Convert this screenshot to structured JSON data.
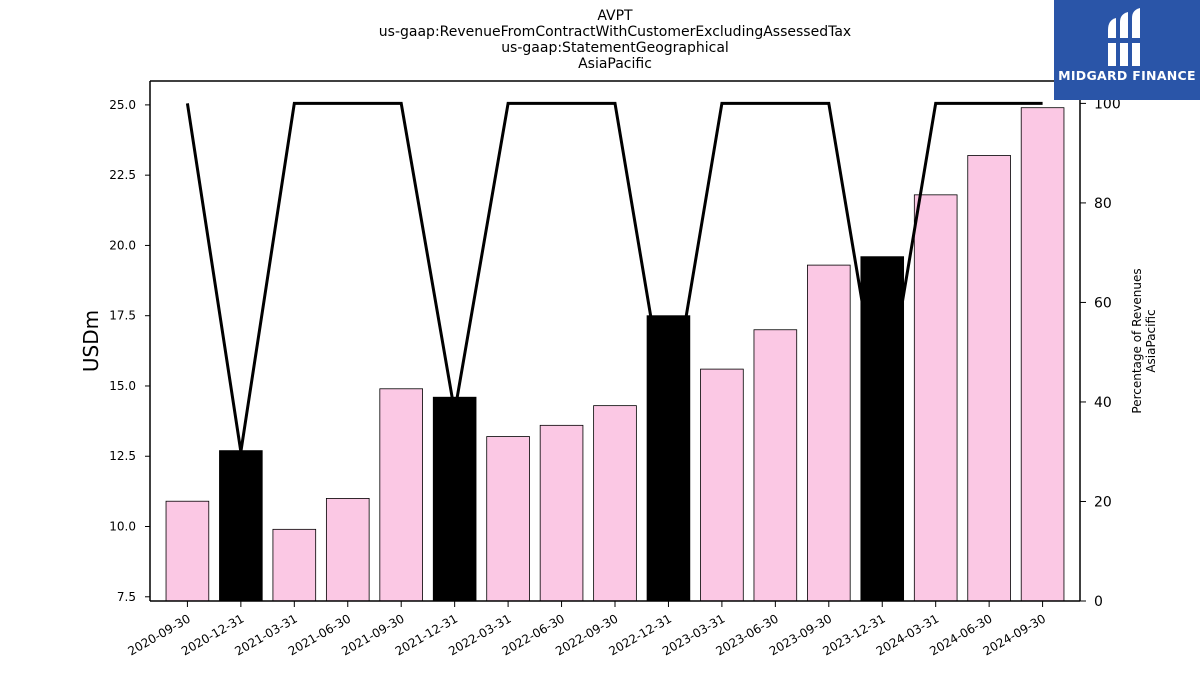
{
  "chart_data": {
    "type": "bar",
    "title_lines": [
      "AVPT",
      "us-gaap:RevenueFromContractWithCustomerExcludingAssessedTax",
      "us-gaap:StatementGeographical",
      "AsiaPacific"
    ],
    "ylabel": "USDm",
    "y2label_lines": [
      "Percentage of Revenues",
      "AsiaPacific"
    ],
    "categories": [
      "2020-09-30",
      "2020-12-31",
      "2021-03-31",
      "2021-06-30",
      "2021-09-30",
      "2021-12-31",
      "2022-03-31",
      "2022-06-30",
      "2022-09-30",
      "2022-12-31",
      "2023-03-31",
      "2023-06-30",
      "2023-09-30",
      "2023-12-31",
      "2024-03-31",
      "2024-06-30",
      "2024-09-30"
    ],
    "series": [
      {
        "type": "bar",
        "values": [
          10.9,
          12.7,
          9.9,
          11.0,
          14.9,
          14.6,
          13.2,
          13.6,
          14.3,
          17.5,
          15.6,
          17.0,
          19.3,
          19.6,
          21.8,
          23.2,
          24.9
        ]
      },
      {
        "type": "line",
        "axis": "right",
        "values": [
          100,
          30,
          100,
          100,
          100,
          38,
          100,
          100,
          100,
          36,
          100,
          100,
          100,
          36,
          100,
          100,
          100
        ]
      }
    ],
    "bar_colors": [
      "#fbc8e4",
      "#000000",
      "#fbc8e4",
      "#fbc8e4",
      "#fbc8e4",
      "#000000",
      "#fbc8e4",
      "#fbc8e4",
      "#fbc8e4",
      "#000000",
      "#fbc8e4",
      "#fbc8e4",
      "#fbc8e4",
      "#000000",
      "#fbc8e4",
      "#fbc8e4",
      "#fbc8e4"
    ],
    "ylim": [
      7.35,
      25.85
    ],
    "yticks": [
      "7.5",
      "10.0",
      "12.5",
      "15.0",
      "17.5",
      "20.0",
      "22.5",
      "25.0"
    ],
    "y2lim": [
      0,
      104.5
    ],
    "y2ticks": [
      "0",
      "20",
      "40",
      "60",
      "80",
      "100"
    ],
    "line_color": "#000000",
    "grid": false
  },
  "logo": {
    "text": "MIDGARD FINANCE",
    "color": "#2a55a8"
  }
}
